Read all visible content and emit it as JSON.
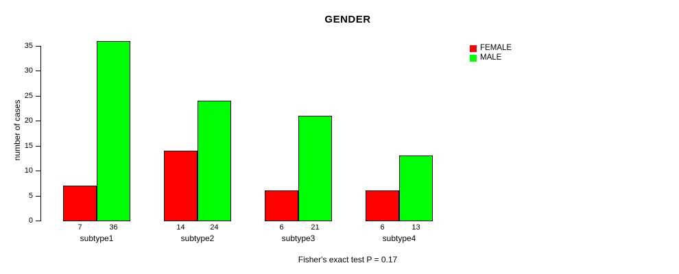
{
  "chart_data": {
    "type": "bar",
    "title": "GENDER",
    "xlabel": "",
    "ylabel": "number of cases",
    "annotation": "Fisher's exact test P = 0.17",
    "categories": [
      "subtype1",
      "subtype2",
      "subtype3",
      "subtype4"
    ],
    "series": [
      {
        "name": "FEMALE",
        "color": "#ff0000",
        "values": [
          7,
          14,
          6,
          6
        ]
      },
      {
        "name": "MALE",
        "color": "#00ff00",
        "values": [
          36,
          24,
          21,
          13
        ]
      }
    ],
    "ylim": [
      0,
      35
    ],
    "yticks": [
      0,
      5,
      10,
      15,
      20,
      25,
      30,
      35
    ],
    "grid": false,
    "bar_value_labels": true,
    "legend_position": "top-right",
    "axis_color": "#000000",
    "bar_border_color": "#000000",
    "background_color": "#ffffff"
  }
}
